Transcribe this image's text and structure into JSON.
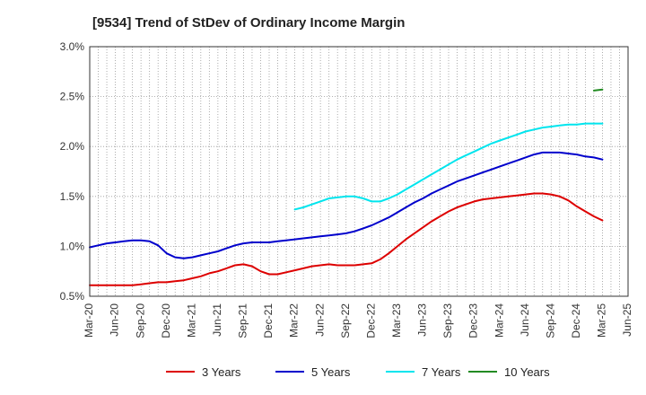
{
  "chart_data": {
    "type": "line",
    "title": "[9534]  Trend of StDev of Ordinary Income Margin",
    "xlabel": "",
    "ylabel": "",
    "x": [
      "Mar-20",
      "Apr-20",
      "May-20",
      "Jun-20",
      "Jul-20",
      "Aug-20",
      "Sep-20",
      "Oct-20",
      "Nov-20",
      "Dec-20",
      "Jan-21",
      "Feb-21",
      "Mar-21",
      "Apr-21",
      "May-21",
      "Jun-21",
      "Jul-21",
      "Aug-21",
      "Sep-21",
      "Oct-21",
      "Nov-21",
      "Dec-21",
      "Jan-22",
      "Feb-22",
      "Mar-22",
      "Apr-22",
      "May-22",
      "Jun-22",
      "Jul-22",
      "Aug-22",
      "Sep-22",
      "Oct-22",
      "Nov-22",
      "Dec-22",
      "Jan-23",
      "Feb-23",
      "Mar-23",
      "Apr-23",
      "May-23",
      "Jun-23",
      "Jul-23",
      "Aug-23",
      "Sep-23",
      "Oct-23",
      "Nov-23",
      "Dec-23",
      "Jan-24",
      "Feb-24",
      "Mar-24",
      "Apr-24",
      "May-24",
      "Jun-24",
      "Jul-24",
      "Aug-24",
      "Sep-24",
      "Oct-24",
      "Nov-24",
      "Dec-24",
      "Jan-25",
      "Feb-25",
      "Mar-25",
      "Apr-25",
      "May-25",
      "Jun-25"
    ],
    "x_tick_labels": [
      "Mar-20",
      "Jun-20",
      "Sep-20",
      "Dec-20",
      "Mar-21",
      "Jun-21",
      "Sep-21",
      "Dec-21",
      "Mar-22",
      "Jun-22",
      "Sep-22",
      "Dec-22",
      "Mar-23",
      "Jun-23",
      "Sep-23",
      "Dec-23",
      "Mar-24",
      "Jun-24",
      "Sep-24",
      "Dec-24",
      "Mar-25",
      "Jun-25"
    ],
    "y_tick_labels": [
      "0.5%",
      "1.0%",
      "1.5%",
      "2.0%",
      "2.5%",
      "3.0%"
    ],
    "ylim": [
      0.5,
      3.0
    ],
    "y_unit": "%",
    "grid": true,
    "legend_position": "bottom",
    "series": [
      {
        "name": "3 Years",
        "color": "#dd0000",
        "values": [
          0.61,
          0.61,
          0.61,
          0.61,
          0.61,
          0.61,
          0.62,
          0.63,
          0.64,
          0.64,
          0.65,
          0.66,
          0.68,
          0.7,
          0.73,
          0.75,
          0.78,
          0.81,
          0.82,
          0.8,
          0.75,
          0.72,
          0.72,
          0.74,
          0.76,
          0.78,
          0.8,
          0.81,
          0.82,
          0.81,
          0.81,
          0.81,
          0.82,
          0.83,
          0.87,
          0.93,
          1.0,
          1.07,
          1.13,
          1.19,
          1.25,
          1.3,
          1.35,
          1.39,
          1.42,
          1.45,
          1.47,
          1.48,
          1.49,
          1.5,
          1.51,
          1.52,
          1.53,
          1.53,
          1.52,
          1.5,
          1.46,
          1.4,
          1.35,
          1.3,
          1.26,
          null,
          null,
          null
        ]
      },
      {
        "name": "5 Years",
        "color": "#0000cc",
        "values": [
          0.99,
          1.01,
          1.03,
          1.04,
          1.05,
          1.06,
          1.06,
          1.05,
          1.01,
          0.93,
          0.89,
          0.88,
          0.89,
          0.91,
          0.93,
          0.95,
          0.98,
          1.01,
          1.03,
          1.04,
          1.04,
          1.04,
          1.05,
          1.06,
          1.07,
          1.08,
          1.09,
          1.1,
          1.11,
          1.12,
          1.13,
          1.15,
          1.18,
          1.21,
          1.25,
          1.29,
          1.34,
          1.39,
          1.44,
          1.48,
          1.53,
          1.57,
          1.61,
          1.65,
          1.68,
          1.71,
          1.74,
          1.77,
          1.8,
          1.83,
          1.86,
          1.89,
          1.92,
          1.94,
          1.94,
          1.94,
          1.93,
          1.92,
          1.9,
          1.89,
          1.87,
          null,
          null,
          null
        ]
      },
      {
        "name": "7 Years",
        "color": "#00e5ee",
        "values": [
          null,
          null,
          null,
          null,
          null,
          null,
          null,
          null,
          null,
          null,
          null,
          null,
          null,
          null,
          null,
          null,
          null,
          null,
          null,
          null,
          null,
          null,
          null,
          null,
          1.37,
          1.39,
          1.42,
          1.45,
          1.48,
          1.49,
          1.5,
          1.5,
          1.48,
          1.45,
          1.45,
          1.48,
          1.52,
          1.57,
          1.62,
          1.67,
          1.72,
          1.77,
          1.82,
          1.87,
          1.91,
          1.95,
          1.99,
          2.03,
          2.06,
          2.09,
          2.12,
          2.15,
          2.17,
          2.19,
          2.2,
          2.21,
          2.22,
          2.22,
          2.23,
          2.23,
          2.23,
          null,
          null,
          null
        ]
      },
      {
        "name": "10 Years",
        "color": "#228b22",
        "values": [
          null,
          null,
          null,
          null,
          null,
          null,
          null,
          null,
          null,
          null,
          null,
          null,
          null,
          null,
          null,
          null,
          null,
          null,
          null,
          null,
          null,
          null,
          null,
          null,
          null,
          null,
          null,
          null,
          null,
          null,
          null,
          null,
          null,
          null,
          null,
          null,
          null,
          null,
          null,
          null,
          null,
          null,
          null,
          null,
          null,
          null,
          null,
          null,
          null,
          null,
          null,
          null,
          null,
          null,
          null,
          null,
          null,
          null,
          null,
          2.56,
          2.57,
          null,
          null,
          null
        ]
      }
    ]
  }
}
